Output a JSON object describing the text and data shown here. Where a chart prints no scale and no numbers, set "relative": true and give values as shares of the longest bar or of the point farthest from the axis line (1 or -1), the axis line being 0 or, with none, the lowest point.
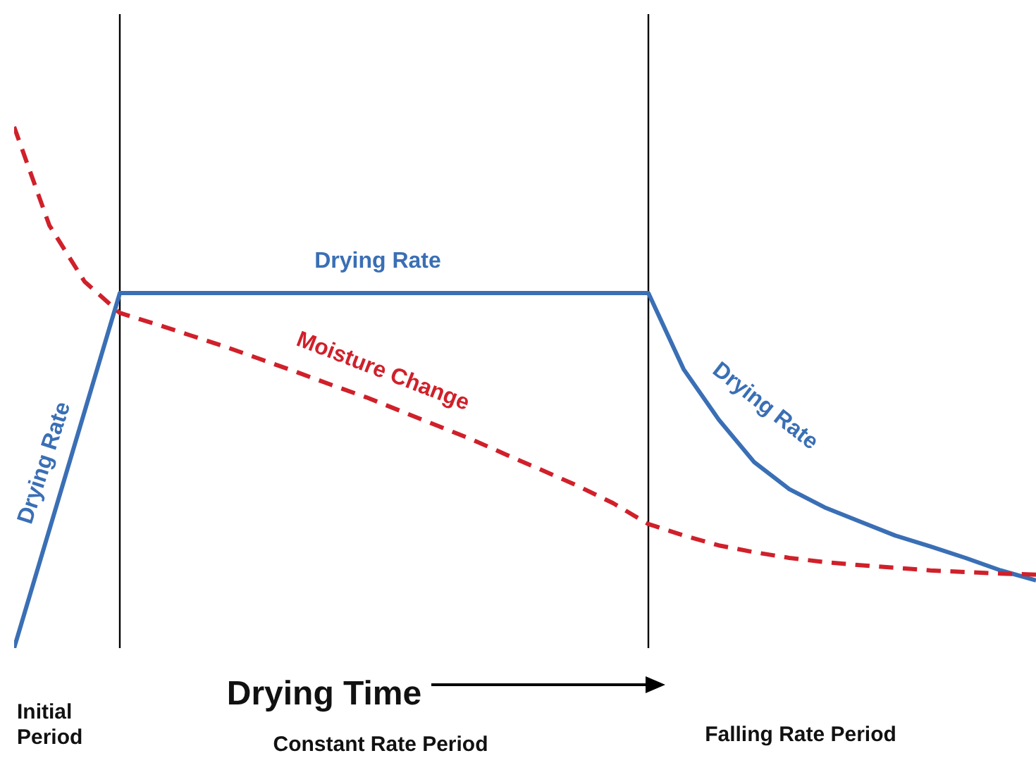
{
  "chart_data": {
    "type": "line",
    "relative": true,
    "marker": "none",
    "categories": [
      null,
      null,
      null,
      null,
      null,
      null,
      null,
      null,
      null,
      null,
      null,
      null,
      null,
      null,
      null,
      null,
      null,
      null,
      null,
      null,
      null,
      null,
      null,
      null,
      null,
      null,
      null,
      null,
      null,
      null
    ],
    "series": [
      {
        "name": "Drying Rate",
        "color": "#3a6fb5",
        "line_style": "solid",
        "values": [
          0,
          0.227,
          0.454,
          0.681,
          0.681,
          0.681,
          0.681,
          0.681,
          0.681,
          0.681,
          0.681,
          0.681,
          0.681,
          0.681,
          0.681,
          0.681,
          0.681,
          0.681,
          0.681,
          0.535,
          0.438,
          0.357,
          0.305,
          0.27,
          0.243,
          0.216,
          0.195,
          0.173,
          0.149,
          0.13
        ]
      },
      {
        "name": "Moisture Change",
        "color": "#d0202a",
        "line_style": "dashed",
        "values": [
          1,
          0.811,
          0.703,
          0.643,
          0.622,
          0.6,
          0.578,
          0.554,
          0.53,
          0.505,
          0.481,
          0.454,
          0.427,
          0.4,
          0.37,
          0.341,
          0.311,
          0.278,
          0.238,
          0.216,
          0.197,
          0.184,
          0.173,
          0.165,
          0.159,
          0.154,
          0.149,
          0.146,
          0.143,
          0.141
        ]
      }
    ],
    "annotations": [
      "Drying Rate",
      "Drying Rate",
      "Drying Time",
      "Initial Period",
      "Constant Rate Period",
      "Falling Rate Period"
    ]
  }
}
